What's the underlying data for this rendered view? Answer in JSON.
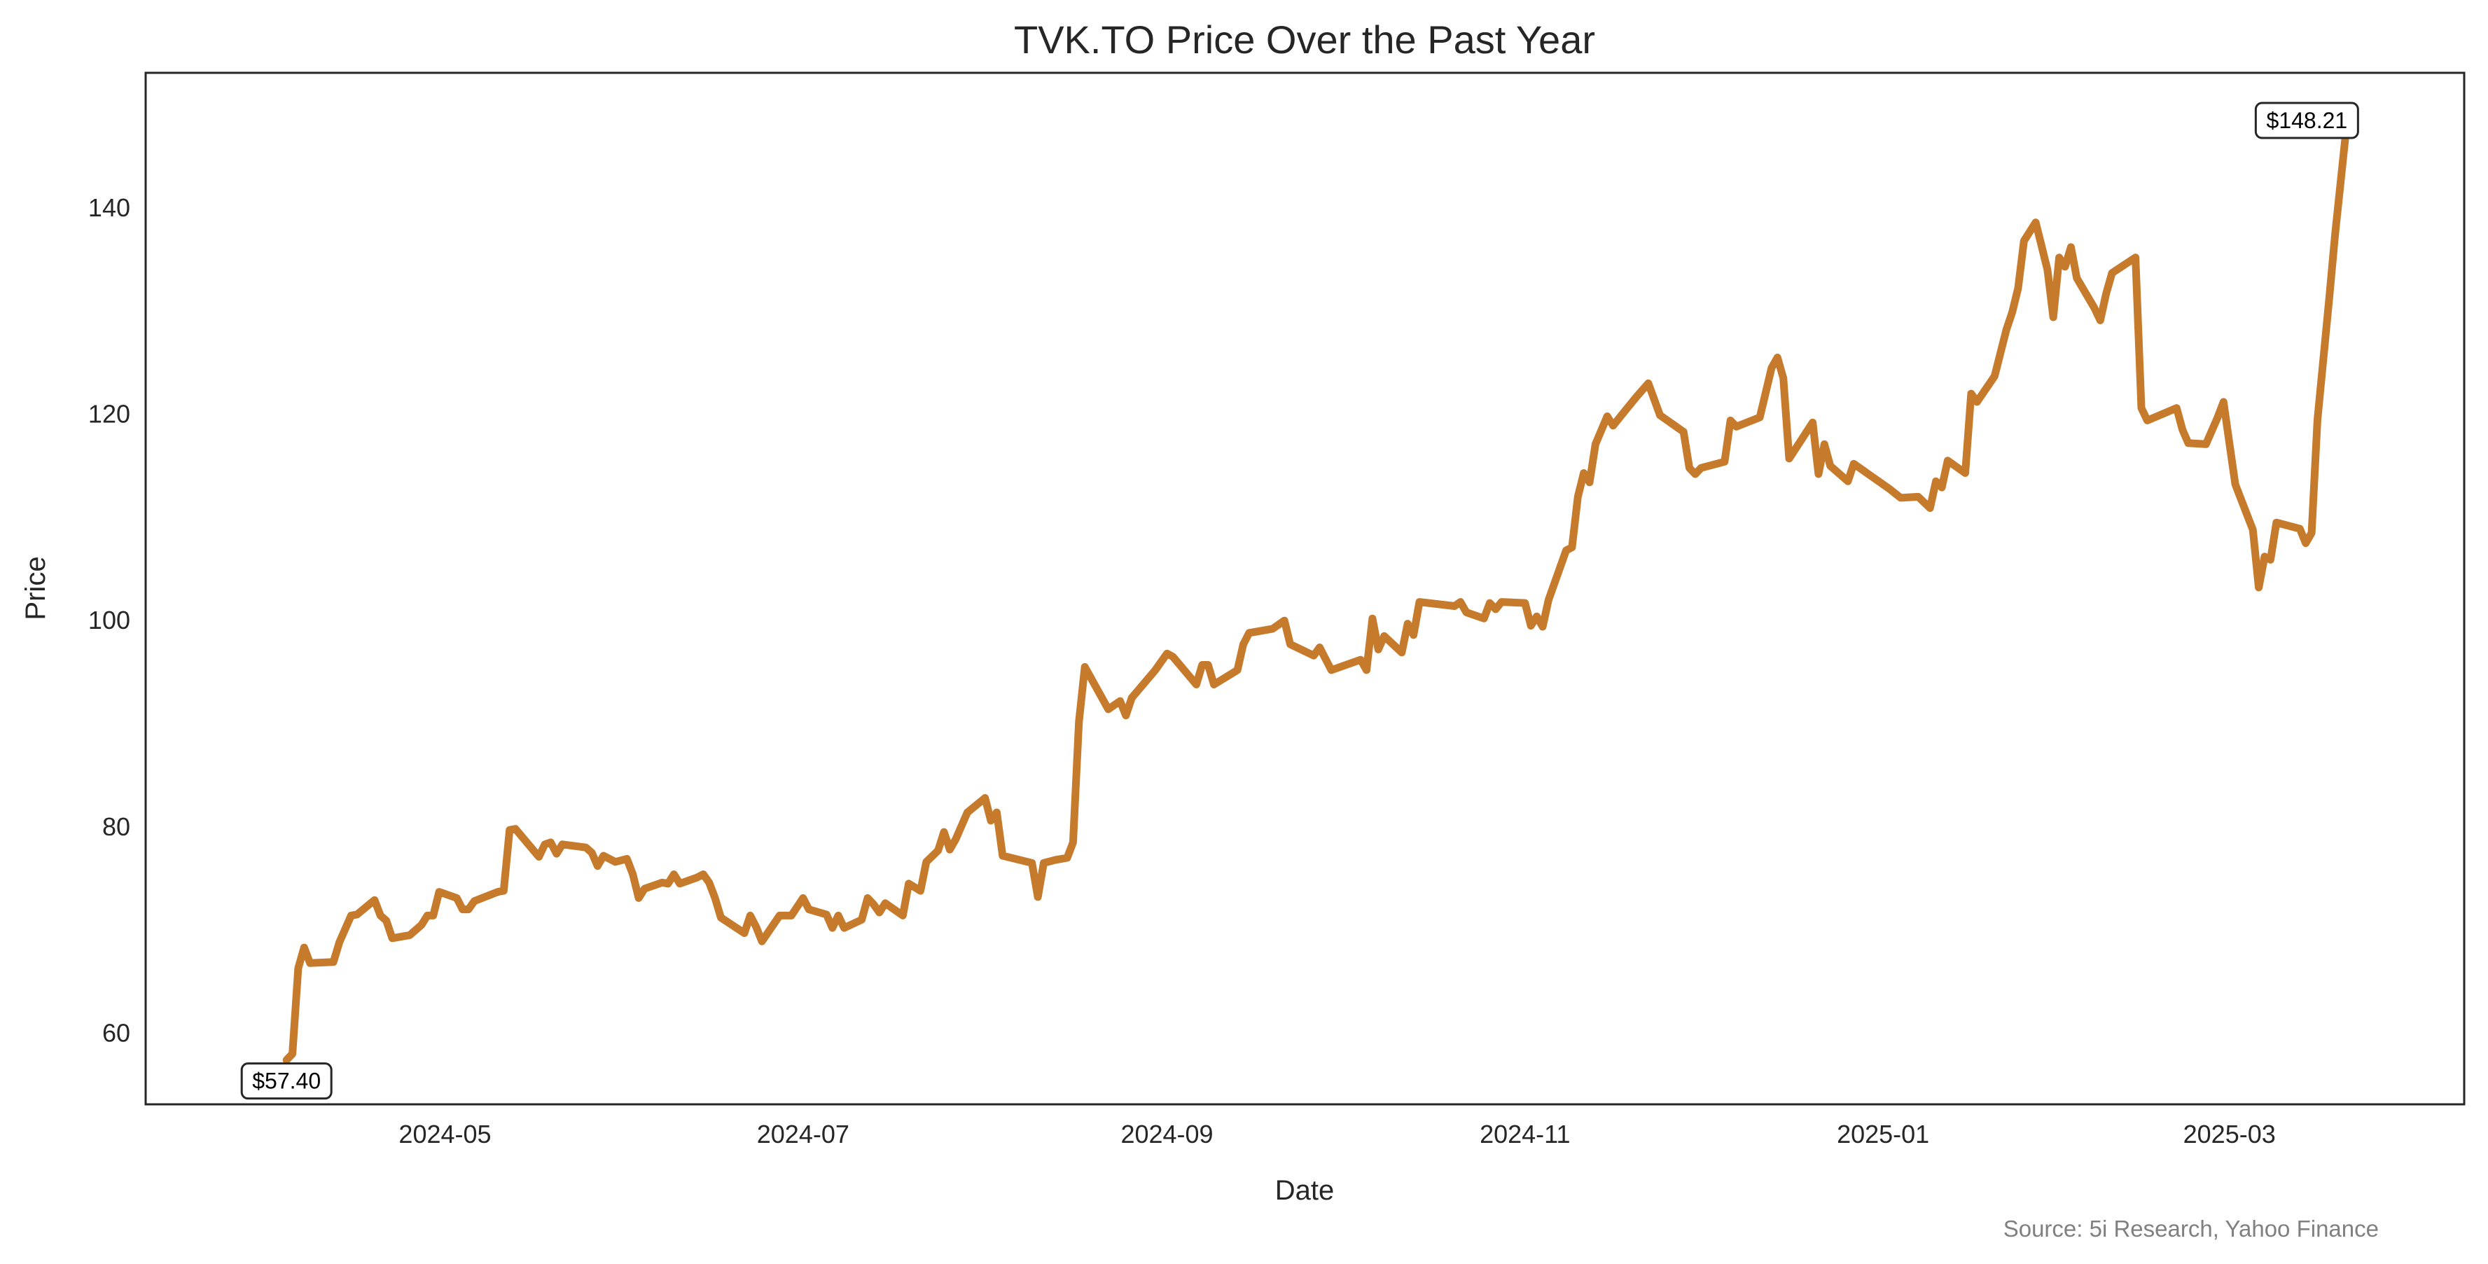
{
  "chart_data": {
    "type": "line",
    "title": "TVK.TO Price Over the Past Year",
    "xlabel": "Date",
    "ylabel": "Price",
    "source": "Source: 5i Research, Yahoo Finance",
    "xlim": [
      "2024-03-11",
      "2025-04-10"
    ],
    "ylim": [
      53.1,
      153.1
    ],
    "yticks": [
      60,
      80,
      100,
      120,
      140
    ],
    "xticks": [
      {
        "date": "2024-05-01",
        "label": "2024-05"
      },
      {
        "date": "2024-07-01",
        "label": "2024-07"
      },
      {
        "date": "2024-09-01",
        "label": "2024-09"
      },
      {
        "date": "2024-11-01",
        "label": "2024-11"
      },
      {
        "date": "2025-01-01",
        "label": "2025-01"
      },
      {
        "date": "2025-03-01",
        "label": "2025-03"
      }
    ],
    "grid": false,
    "line_color": "#C67A2C",
    "annotations": [
      {
        "label": "$57.40",
        "point": "first"
      },
      {
        "label": "$148.21",
        "point": "last"
      }
    ],
    "series": [
      {
        "name": "TVK.TO",
        "points": [
          [
            "2024-04-04",
            57.4
          ],
          [
            "2024-04-05",
            58.0
          ],
          [
            "2024-04-06",
            66.3
          ],
          [
            "2024-04-07",
            68.3
          ],
          [
            "2024-04-08",
            66.8
          ],
          [
            "2024-04-12",
            66.9
          ],
          [
            "2024-04-13",
            68.8
          ],
          [
            "2024-04-15",
            71.4
          ],
          [
            "2024-04-16",
            71.5
          ],
          [
            "2024-04-19",
            72.9
          ],
          [
            "2024-04-20",
            71.4
          ],
          [
            "2024-04-21",
            70.9
          ],
          [
            "2024-04-22",
            69.2
          ],
          [
            "2024-04-25",
            69.5
          ],
          [
            "2024-04-27",
            70.5
          ],
          [
            "2024-04-28",
            71.4
          ],
          [
            "2024-04-29",
            71.4
          ],
          [
            "2024-04-30",
            73.7
          ],
          [
            "2024-05-03",
            73.1
          ],
          [
            "2024-05-04",
            72.0
          ],
          [
            "2024-05-05",
            72.0
          ],
          [
            "2024-05-06",
            72.8
          ],
          [
            "2024-05-10",
            73.7
          ],
          [
            "2024-05-11",
            73.8
          ],
          [
            "2024-05-12",
            79.7
          ],
          [
            "2024-05-13",
            79.8
          ],
          [
            "2024-05-17",
            77.1
          ],
          [
            "2024-05-18",
            78.3
          ],
          [
            "2024-05-19",
            78.5
          ],
          [
            "2024-05-20",
            77.4
          ],
          [
            "2024-05-21",
            78.3
          ],
          [
            "2024-05-25",
            78.0
          ],
          [
            "2024-05-26",
            77.5
          ],
          [
            "2024-05-27",
            76.2
          ],
          [
            "2024-05-28",
            77.2
          ],
          [
            "2024-05-30",
            76.6
          ],
          [
            "2024-06-01",
            76.9
          ],
          [
            "2024-06-02",
            75.4
          ],
          [
            "2024-06-03",
            73.1
          ],
          [
            "2024-06-04",
            74.0
          ],
          [
            "2024-06-07",
            74.6
          ],
          [
            "2024-06-08",
            74.5
          ],
          [
            "2024-06-09",
            75.4
          ],
          [
            "2024-06-10",
            74.5
          ],
          [
            "2024-06-13",
            75.1
          ],
          [
            "2024-06-14",
            75.4
          ],
          [
            "2024-06-15",
            74.6
          ],
          [
            "2024-06-16",
            73.1
          ],
          [
            "2024-06-17",
            71.2
          ],
          [
            "2024-06-21",
            69.7
          ],
          [
            "2024-06-22",
            71.4
          ],
          [
            "2024-06-23",
            70.3
          ],
          [
            "2024-06-24",
            68.9
          ],
          [
            "2024-06-27",
            71.4
          ],
          [
            "2024-06-29",
            71.4
          ],
          [
            "2024-07-01",
            73.1
          ],
          [
            "2024-07-02",
            72.0
          ],
          [
            "2024-07-05",
            71.5
          ],
          [
            "2024-07-06",
            70.2
          ],
          [
            "2024-07-07",
            71.4
          ],
          [
            "2024-07-08",
            70.2
          ],
          [
            "2024-07-11",
            71.0
          ],
          [
            "2024-07-12",
            73.1
          ],
          [
            "2024-07-13",
            72.5
          ],
          [
            "2024-07-14",
            71.7
          ],
          [
            "2024-07-15",
            72.6
          ],
          [
            "2024-07-18",
            71.4
          ],
          [
            "2024-07-19",
            74.5
          ],
          [
            "2024-07-21",
            73.8
          ],
          [
            "2024-07-22",
            76.6
          ],
          [
            "2024-07-24",
            77.7
          ],
          [
            "2024-07-25",
            79.5
          ],
          [
            "2024-07-26",
            77.8
          ],
          [
            "2024-07-27",
            78.8
          ],
          [
            "2024-07-29",
            81.4
          ],
          [
            "2024-08-01",
            82.8
          ],
          [
            "2024-08-02",
            80.6
          ],
          [
            "2024-08-03",
            81.4
          ],
          [
            "2024-08-04",
            77.2
          ],
          [
            "2024-08-09",
            76.5
          ],
          [
            "2024-08-10",
            73.2
          ],
          [
            "2024-08-11",
            76.5
          ],
          [
            "2024-08-13",
            76.8
          ],
          [
            "2024-08-15",
            77.0
          ],
          [
            "2024-08-16",
            78.5
          ],
          [
            "2024-08-17",
            90.2
          ],
          [
            "2024-08-18",
            95.5
          ],
          [
            "2024-08-22",
            91.4
          ],
          [
            "2024-08-24",
            92.2
          ],
          [
            "2024-08-25",
            90.8
          ],
          [
            "2024-08-26",
            92.5
          ],
          [
            "2024-08-30",
            95.2
          ],
          [
            "2024-09-01",
            96.8
          ],
          [
            "2024-09-02",
            96.5
          ],
          [
            "2024-09-06",
            93.8
          ],
          [
            "2024-09-07",
            95.7
          ],
          [
            "2024-09-08",
            95.7
          ],
          [
            "2024-09-09",
            93.8
          ],
          [
            "2024-09-13",
            95.2
          ],
          [
            "2024-09-14",
            97.7
          ],
          [
            "2024-09-15",
            98.8
          ],
          [
            "2024-09-19",
            99.2
          ],
          [
            "2024-09-21",
            100.0
          ],
          [
            "2024-09-22",
            97.7
          ],
          [
            "2024-09-26",
            96.6
          ],
          [
            "2024-09-27",
            97.4
          ],
          [
            "2024-09-29",
            95.2
          ],
          [
            "2024-10-04",
            96.2
          ],
          [
            "2024-10-05",
            95.2
          ],
          [
            "2024-10-06",
            100.2
          ],
          [
            "2024-10-07",
            97.2
          ],
          [
            "2024-10-08",
            98.5
          ],
          [
            "2024-10-11",
            96.9
          ],
          [
            "2024-10-12",
            99.7
          ],
          [
            "2024-10-13",
            98.6
          ],
          [
            "2024-10-14",
            101.8
          ],
          [
            "2024-10-20",
            101.4
          ],
          [
            "2024-10-21",
            101.8
          ],
          [
            "2024-10-22",
            100.8
          ],
          [
            "2024-10-25",
            100.2
          ],
          [
            "2024-10-26",
            101.7
          ],
          [
            "2024-10-27",
            101.1
          ],
          [
            "2024-10-28",
            101.8
          ],
          [
            "2024-11-01",
            101.7
          ],
          [
            "2024-11-02",
            99.5
          ],
          [
            "2024-11-03",
            100.4
          ],
          [
            "2024-11-04",
            99.4
          ],
          [
            "2024-11-05",
            102.0
          ],
          [
            "2024-11-08",
            106.8
          ],
          [
            "2024-11-09",
            107.1
          ],
          [
            "2024-11-10",
            112.0
          ],
          [
            "2024-11-11",
            114.3
          ],
          [
            "2024-11-12",
            113.4
          ],
          [
            "2024-11-13",
            117.1
          ],
          [
            "2024-11-15",
            119.8
          ],
          [
            "2024-11-16",
            118.9
          ],
          [
            "2024-11-18",
            120.3
          ],
          [
            "2024-11-20",
            121.7
          ],
          [
            "2024-11-22",
            123.0
          ],
          [
            "2024-11-24",
            119.9
          ],
          [
            "2024-11-28",
            118.3
          ],
          [
            "2024-11-29",
            114.8
          ],
          [
            "2024-11-30",
            114.2
          ],
          [
            "2024-12-01",
            114.8
          ],
          [
            "2024-12-05",
            115.4
          ],
          [
            "2024-12-06",
            119.4
          ],
          [
            "2024-12-07",
            118.8
          ],
          [
            "2024-12-11",
            119.7
          ],
          [
            "2024-12-13",
            124.5
          ],
          [
            "2024-12-14",
            125.5
          ],
          [
            "2024-12-15",
            123.5
          ],
          [
            "2024-12-16",
            115.7
          ],
          [
            "2024-12-20",
            119.2
          ],
          [
            "2024-12-21",
            114.2
          ],
          [
            "2024-12-22",
            117.1
          ],
          [
            "2024-12-23",
            115.0
          ],
          [
            "2024-12-26",
            113.5
          ],
          [
            "2024-12-27",
            115.2
          ],
          [
            "2025-01-02",
            112.8
          ],
          [
            "2025-01-04",
            111.9
          ],
          [
            "2025-01-07",
            112.0
          ],
          [
            "2025-01-09",
            110.9
          ],
          [
            "2025-01-10",
            113.5
          ],
          [
            "2025-01-11",
            112.9
          ],
          [
            "2025-01-12",
            115.5
          ],
          [
            "2025-01-15",
            114.3
          ],
          [
            "2025-01-16",
            122.0
          ],
          [
            "2025-01-17",
            121.2
          ],
          [
            "2025-01-20",
            123.7
          ],
          [
            "2025-01-22",
            128.2
          ],
          [
            "2025-01-23",
            129.9
          ],
          [
            "2025-01-24",
            132.2
          ],
          [
            "2025-01-25",
            136.8
          ],
          [
            "2025-01-27",
            138.6
          ],
          [
            "2025-01-29",
            134.0
          ],
          [
            "2025-01-30",
            129.4
          ],
          [
            "2025-01-31",
            135.2
          ],
          [
            "2025-02-01",
            134.3
          ],
          [
            "2025-02-02",
            136.2
          ],
          [
            "2025-02-03",
            133.2
          ],
          [
            "2025-02-06",
            130.3
          ],
          [
            "2025-02-07",
            129.1
          ],
          [
            "2025-02-08",
            131.7
          ],
          [
            "2025-02-09",
            133.7
          ],
          [
            "2025-02-13",
            135.2
          ],
          [
            "2025-02-14",
            120.6
          ],
          [
            "2025-02-15",
            119.4
          ],
          [
            "2025-02-20",
            120.6
          ],
          [
            "2025-02-21",
            118.5
          ],
          [
            "2025-02-22",
            117.2
          ],
          [
            "2025-02-25",
            117.1
          ],
          [
            "2025-02-27",
            119.7
          ],
          [
            "2025-02-28",
            121.2
          ],
          [
            "2025-03-02",
            113.2
          ],
          [
            "2025-03-05",
            108.8
          ],
          [
            "2025-03-06",
            103.2
          ],
          [
            "2025-03-07",
            106.2
          ],
          [
            "2025-03-08",
            105.9
          ],
          [
            "2025-03-09",
            109.5
          ],
          [
            "2025-03-13",
            108.9
          ],
          [
            "2025-03-14",
            107.5
          ],
          [
            "2025-03-15",
            108.5
          ],
          [
            "2025-03-16",
            119.4
          ],
          [
            "2025-03-18",
            131.2
          ],
          [
            "2025-03-19",
            137.4
          ],
          [
            "2025-03-21",
            148.21
          ]
        ]
      }
    ]
  }
}
